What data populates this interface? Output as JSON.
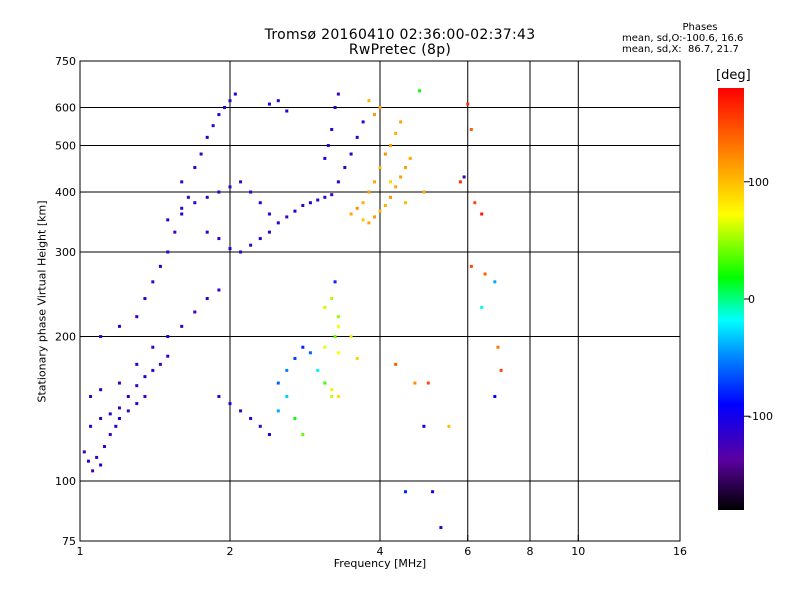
{
  "chart_data": {
    "type": "scatter",
    "title": "Tromsø 20160410 02:36:00-02:37:43",
    "subtitle": "RwPretec (8p)",
    "xlabel": "Frequency [MHz]",
    "ylabel": "Stationary phase Virtual Height [km]",
    "x_scale": "log",
    "y_scale": "log",
    "xlim": [
      1,
      16
    ],
    "ylim": [
      75,
      750
    ],
    "x_ticks": [
      1,
      2,
      4,
      6,
      8,
      10,
      16
    ],
    "x_tick_labels": [
      "1",
      "2",
      "4",
      "6",
      "8",
      "10",
      "16"
    ],
    "y_ticks": [
      75,
      100,
      200,
      300,
      400,
      500,
      600,
      750
    ],
    "y_tick_labels": [
      "75",
      "100",
      "200",
      "300",
      "400",
      "500",
      "600",
      "750"
    ],
    "x_grid": [
      2,
      4,
      6,
      8,
      10
    ],
    "y_grid": [
      100,
      200,
      300,
      400,
      500,
      600
    ],
    "grid": true,
    "legend": {
      "title": "Phases",
      "lines": [
        "mean, sd,O:-100.6, 16.6",
        "mean, sd,X:  86.7, 21.7"
      ],
      "placement": "top-right"
    },
    "colorbar": {
      "title": "[deg]",
      "range": [
        -180,
        180
      ],
      "ticks": [
        100,
        0,
        -100
      ],
      "tick_labels": [
        "100",
        "0",
        "-100"
      ]
    },
    "series": [
      {
        "note_color_by": "phase",
        "points": [
          [
            1.02,
            115,
            -120
          ],
          [
            1.04,
            110,
            -110
          ],
          [
            1.06,
            105,
            -125
          ],
          [
            1.08,
            112,
            -118
          ],
          [
            1.1,
            108,
            -100
          ],
          [
            1.12,
            118,
            -115
          ],
          [
            1.15,
            125,
            -120
          ],
          [
            1.18,
            130,
            -112
          ],
          [
            1.2,
            135,
            -105
          ],
          [
            1.25,
            140,
            -118
          ],
          [
            1.3,
            145,
            -110
          ],
          [
            1.35,
            150,
            -122
          ],
          [
            1.05,
            130,
            -110
          ],
          [
            1.1,
            135,
            -115
          ],
          [
            1.15,
            138,
            -108
          ],
          [
            1.2,
            142,
            -120
          ],
          [
            1.25,
            150,
            -112
          ],
          [
            1.3,
            158,
            -118
          ],
          [
            1.35,
            165,
            -105
          ],
          [
            1.4,
            170,
            -115
          ],
          [
            1.45,
            175,
            -125
          ],
          [
            1.5,
            182,
            -110
          ],
          [
            1.05,
            150,
            -115
          ],
          [
            1.1,
            155,
            -110
          ],
          [
            1.2,
            160,
            -120
          ],
          [
            1.3,
            175,
            -112
          ],
          [
            1.4,
            190,
            -118
          ],
          [
            1.5,
            200,
            -108
          ],
          [
            1.6,
            210,
            -115
          ],
          [
            1.7,
            225,
            -120
          ],
          [
            1.8,
            240,
            -112
          ],
          [
            1.9,
            250,
            -118
          ],
          [
            1.1,
            200,
            -115
          ],
          [
            1.2,
            210,
            -108
          ],
          [
            1.3,
            220,
            -120
          ],
          [
            1.35,
            240,
            -112
          ],
          [
            1.4,
            260,
            -118
          ],
          [
            1.45,
            280,
            -105
          ],
          [
            1.5,
            300,
            -115
          ],
          [
            1.55,
            330,
            -122
          ],
          [
            1.6,
            360,
            -110
          ],
          [
            1.65,
            390,
            -118
          ],
          [
            1.5,
            350,
            -110
          ],
          [
            1.6,
            370,
            -120
          ],
          [
            1.7,
            380,
            -112
          ],
          [
            1.8,
            390,
            -118
          ],
          [
            1.9,
            400,
            -108
          ],
          [
            2.0,
            410,
            -115
          ],
          [
            2.1,
            420,
            -122
          ],
          [
            2.2,
            400,
            -110
          ],
          [
            2.3,
            380,
            -105
          ],
          [
            2.4,
            360,
            -112
          ],
          [
            1.6,
            420,
            -115
          ],
          [
            1.7,
            450,
            -110
          ],
          [
            1.75,
            480,
            -120
          ],
          [
            1.8,
            520,
            -112
          ],
          [
            1.85,
            550,
            -118
          ],
          [
            1.9,
            580,
            -105
          ],
          [
            2.0,
            620,
            -115
          ],
          [
            2.05,
            640,
            -110
          ],
          [
            1.95,
            600,
            -108
          ],
          [
            1.8,
            330,
            -112
          ],
          [
            1.9,
            320,
            -118
          ],
          [
            2.0,
            305,
            -110
          ],
          [
            2.1,
            300,
            -115
          ],
          [
            2.2,
            310,
            -120
          ],
          [
            2.3,
            320,
            -108
          ],
          [
            2.4,
            330,
            -114
          ],
          [
            2.5,
            345,
            -110
          ],
          [
            2.6,
            355,
            -118
          ],
          [
            2.7,
            365,
            -105
          ],
          [
            2.8,
            375,
            -110
          ],
          [
            2.9,
            380,
            -108
          ],
          [
            3.0,
            385,
            -115
          ],
          [
            3.1,
            390,
            -112
          ],
          [
            3.2,
            395,
            -118
          ],
          [
            3.3,
            420,
            -110
          ],
          [
            3.4,
            450,
            -115
          ],
          [
            3.5,
            480,
            -108
          ],
          [
            3.6,
            520,
            -112
          ],
          [
            3.7,
            560,
            -118
          ],
          [
            3.1,
            470,
            -110
          ],
          [
            3.15,
            500,
            -115
          ],
          [
            3.2,
            540,
            -112
          ],
          [
            3.25,
            600,
            -108
          ],
          [
            3.3,
            640,
            -118
          ],
          [
            2.4,
            610,
            -110
          ],
          [
            2.5,
            620,
            -112
          ],
          [
            2.6,
            590,
            -108
          ],
          [
            1.9,
            150,
            -115
          ],
          [
            2.0,
            145,
            -110
          ],
          [
            2.1,
            140,
            -120
          ],
          [
            2.2,
            135,
            -112
          ],
          [
            2.3,
            130,
            -118
          ],
          [
            2.4,
            125,
            -108
          ],
          [
            2.5,
            140,
            -40
          ],
          [
            2.6,
            150,
            -30
          ],
          [
            2.7,
            135,
            20
          ],
          [
            2.8,
            125,
            40
          ],
          [
            2.5,
            160,
            -60
          ],
          [
            2.6,
            170,
            -50
          ],
          [
            2.7,
            180,
            -70
          ],
          [
            2.8,
            190,
            -80
          ],
          [
            2.9,
            185,
            -60
          ],
          [
            3.0,
            170,
            -20
          ],
          [
            3.1,
            160,
            30
          ],
          [
            3.2,
            150,
            60
          ],
          [
            3.25,
            200,
            40
          ],
          [
            3.3,
            220,
            50
          ],
          [
            3.1,
            230,
            60
          ],
          [
            3.2,
            240,
            55
          ],
          [
            3.25,
            260,
            -80
          ],
          [
            3.3,
            210,
            70
          ],
          [
            3.5,
            200,
            80
          ],
          [
            3.6,
            180,
            90
          ],
          [
            3.3,
            185,
            70
          ],
          [
            3.1,
            190,
            65
          ],
          [
            3.2,
            155,
            80
          ],
          [
            3.3,
            150,
            85
          ],
          [
            3.5,
            360,
            110
          ],
          [
            3.6,
            370,
            120
          ],
          [
            3.7,
            380,
            105
          ],
          [
            3.8,
            400,
            115
          ],
          [
            3.9,
            420,
            110
          ],
          [
            4.0,
            450,
            100
          ],
          [
            4.1,
            480,
            120
          ],
          [
            4.2,
            500,
            115
          ],
          [
            4.3,
            530,
            108
          ],
          [
            4.4,
            560,
            112
          ],
          [
            3.7,
            350,
            95
          ],
          [
            3.8,
            345,
            110
          ],
          [
            3.9,
            355,
            115
          ],
          [
            4.0,
            365,
            100
          ],
          [
            4.1,
            375,
            105
          ],
          [
            4.2,
            390,
            118
          ],
          [
            4.3,
            410,
            110
          ],
          [
            4.4,
            430,
            115
          ],
          [
            4.5,
            450,
            112
          ],
          [
            4.6,
            470,
            108
          ],
          [
            4.0,
            600,
            110
          ],
          [
            3.9,
            580,
            115
          ],
          [
            3.8,
            620,
            105
          ],
          [
            4.2,
            420,
            90
          ],
          [
            4.5,
            380,
            100
          ],
          [
            4.7,
            160,
            120
          ],
          [
            4.3,
            175,
            140
          ],
          [
            4.9,
            130,
            -95
          ],
          [
            5.1,
            95,
            -100
          ],
          [
            5.3,
            80,
            -110
          ],
          [
            5.8,
            420,
            160
          ],
          [
            6.2,
            380,
            150
          ],
          [
            6.4,
            360,
            170
          ],
          [
            6.1,
            280,
            150
          ],
          [
            6.5,
            270,
            140
          ],
          [
            6.8,
            260,
            -40
          ],
          [
            6.4,
            230,
            -20
          ],
          [
            6.9,
            190,
            130
          ],
          [
            7.0,
            170,
            150
          ],
          [
            6.8,
            150,
            -90
          ],
          [
            5.0,
            160,
            150
          ],
          [
            5.5,
            130,
            100
          ],
          [
            6.0,
            610,
            160
          ],
          [
            6.1,
            540,
            140
          ],
          [
            5.9,
            430,
            -120
          ],
          [
            4.5,
            95,
            -80
          ],
          [
            4.9,
            400,
            110
          ],
          [
            4.8,
            650,
            20
          ]
        ]
      }
    ]
  }
}
